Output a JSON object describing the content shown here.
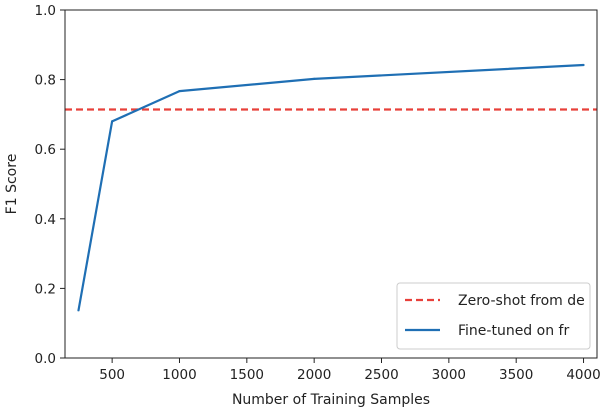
{
  "chart_data": {
    "type": "line",
    "title": "",
    "xlabel": "Number of Training Samples",
    "ylabel": "F1 Score",
    "xlim": [
      150,
      4100
    ],
    "ylim": [
      0.0,
      1.0
    ],
    "x_ticks": [
      500,
      1000,
      1500,
      2000,
      2500,
      3000,
      3500,
      4000
    ],
    "y_ticks": [
      0.0,
      0.2,
      0.4,
      0.6,
      0.8,
      1.0
    ],
    "x_tick_labels": [
      "500",
      "1000",
      "1500",
      "2000",
      "2500",
      "3000",
      "3500",
      "4000"
    ],
    "y_tick_labels": [
      "0.0",
      "0.2",
      "0.4",
      "0.6",
      "0.8",
      "1.0"
    ],
    "grid": false,
    "legend_position": "lower-right",
    "series": [
      {
        "name": "Zero-shot from de",
        "style": "dashed-hline",
        "color": "#e8403a",
        "y": 0.714
      },
      {
        "name": "Fine-tuned on fr",
        "style": "solid",
        "color": "#1f6fb4",
        "x": [
          250,
          500,
          1000,
          2000,
          4000
        ],
        "values": [
          0.137,
          0.68,
          0.767,
          0.802,
          0.842
        ]
      }
    ]
  }
}
